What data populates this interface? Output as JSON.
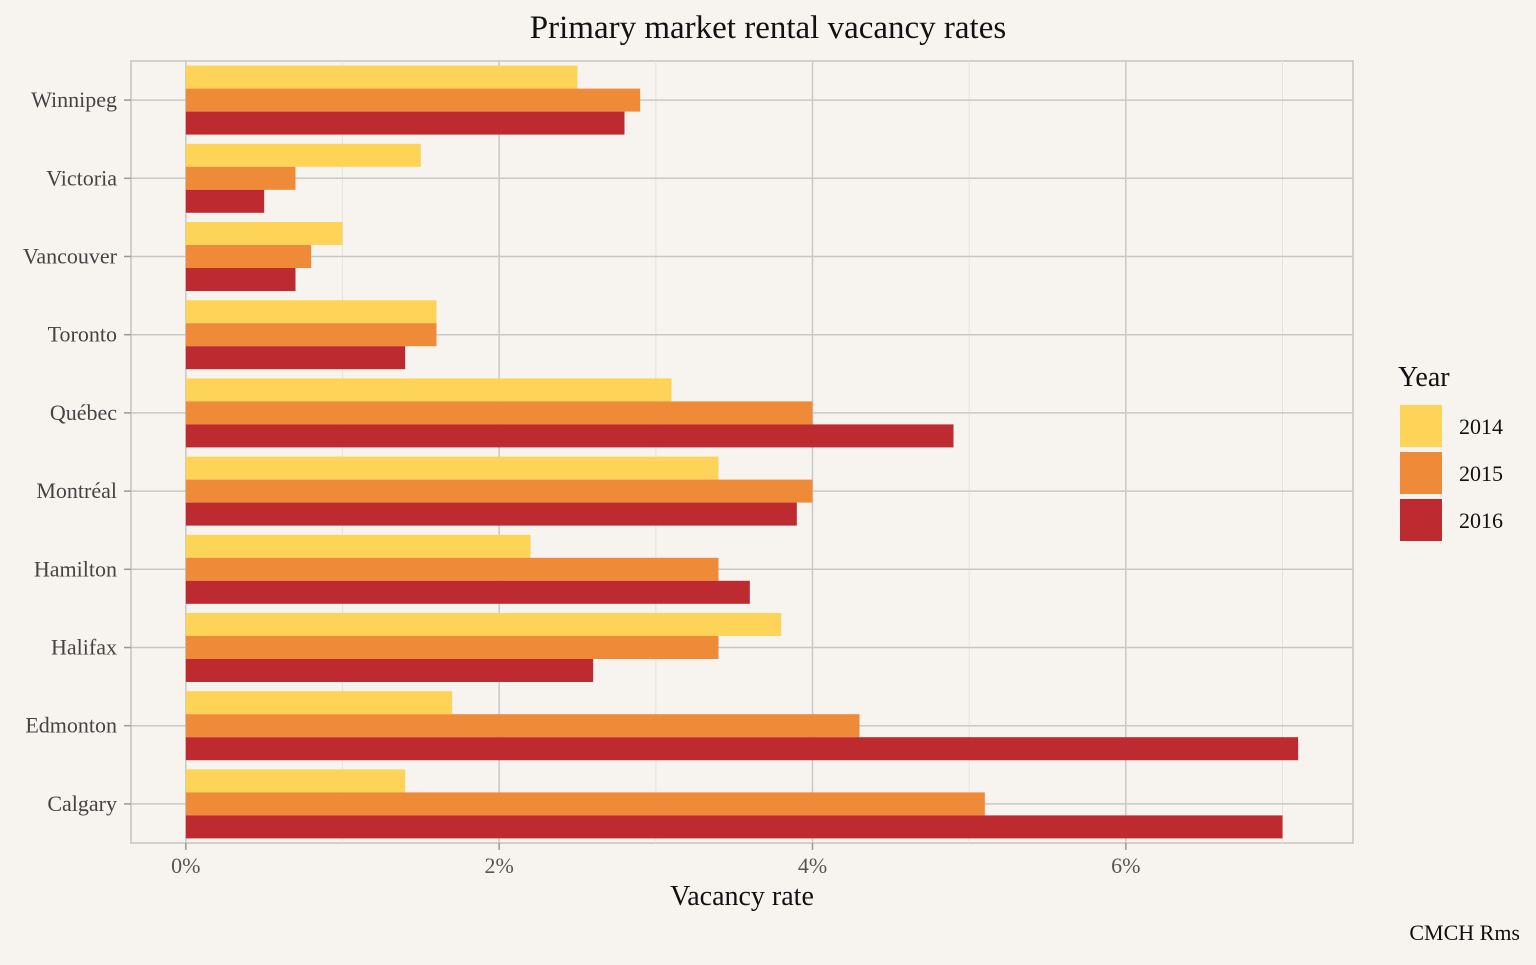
{
  "chart_data": {
    "type": "bar",
    "orientation": "horizontal",
    "title": "Primary market rental vacancy rates",
    "xlabel": "Vacancy rate",
    "ylabel": "",
    "caption": "CMCH Rms",
    "categories": [
      "Winnipeg",
      "Victoria",
      "Vancouver",
      "Toronto",
      "Québec",
      "Montréal",
      "Hamilton",
      "Halifax",
      "Edmonton",
      "Calgary"
    ],
    "series": [
      {
        "name": "2014",
        "color": "#fdd457",
        "values": [
          2.5,
          1.5,
          1.0,
          1.6,
          3.1,
          3.4,
          2.2,
          3.8,
          1.7,
          1.4
        ]
      },
      {
        "name": "2015",
        "color": "#ef8a38",
        "values": [
          2.9,
          0.7,
          0.8,
          1.6,
          4.0,
          4.0,
          3.4,
          3.4,
          4.3,
          5.1
        ]
      },
      {
        "name": "2016",
        "color": "#bd2a2f",
        "values": [
          2.8,
          0.5,
          0.7,
          1.4,
          4.9,
          3.9,
          3.6,
          2.6,
          7.1,
          7.0
        ]
      }
    ],
    "xlim": [
      -0.35,
      7.45
    ],
    "xticks": [
      0,
      2,
      4,
      6
    ],
    "xtick_labels": [
      "0%",
      "2%",
      "4%",
      "6%"
    ],
    "legend": {
      "title": "Year",
      "position": "right"
    },
    "grid": true
  }
}
